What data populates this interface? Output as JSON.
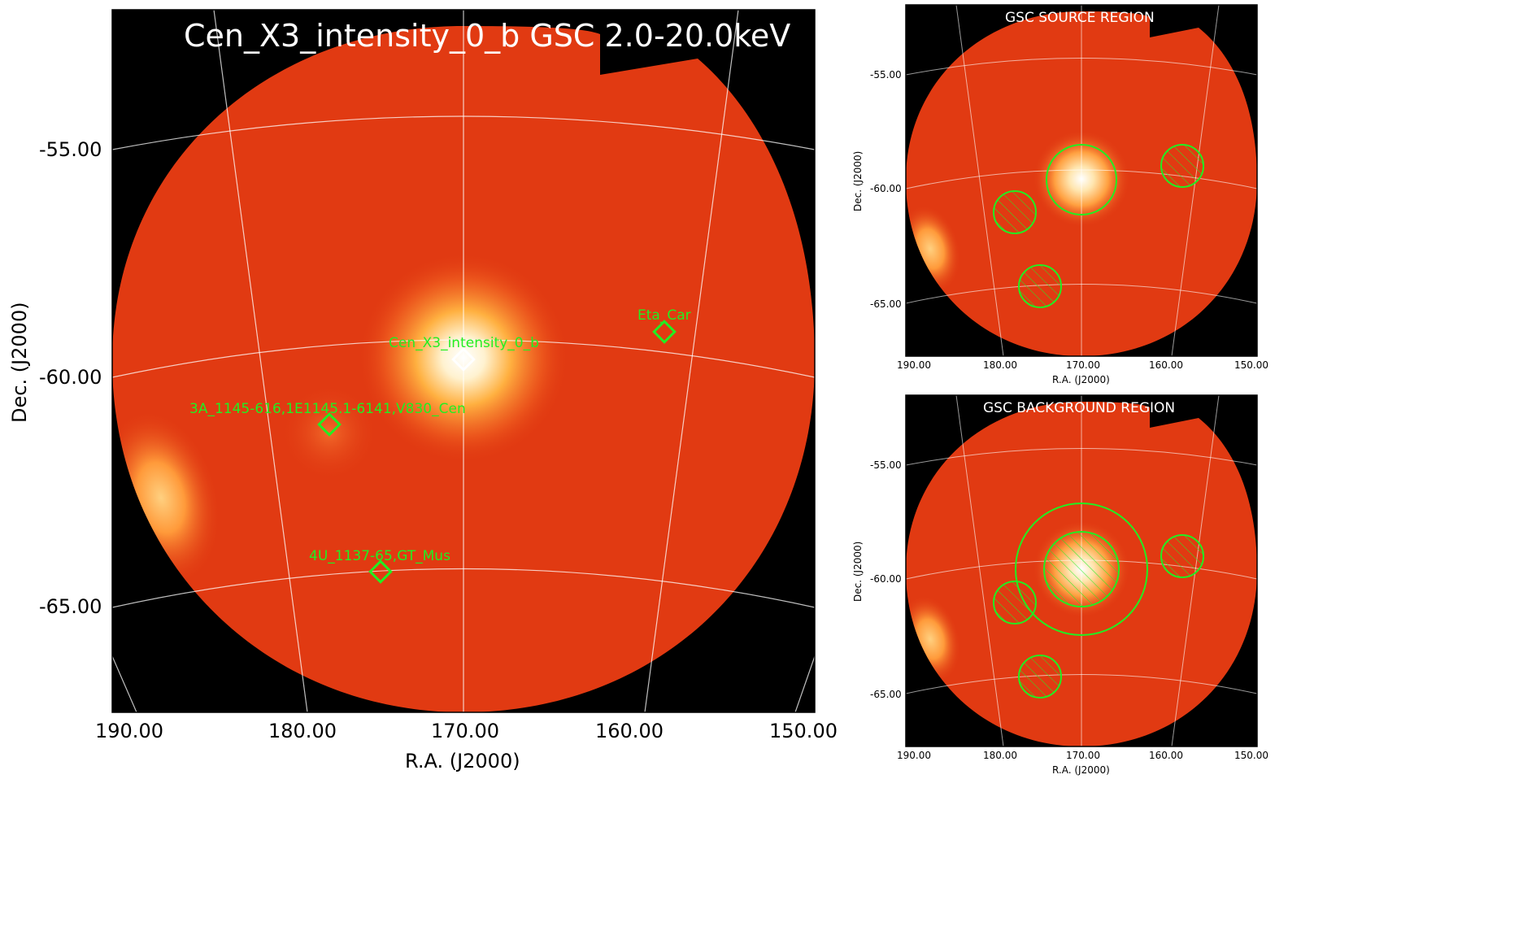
{
  "main": {
    "title": "Cen_X3_intensity_0_b GSC 2.0-20.0keV",
    "xlabel": "R.A. (J2000)",
    "ylabel": "Dec. (J2000)",
    "xticks": [
      "190.00",
      "180.00",
      "170.00",
      "160.00",
      "150.00"
    ],
    "yticks": [
      "-55.00",
      "-60.00",
      "-65.00"
    ],
    "sources": [
      {
        "label": "Cen_X3_intensity_0_b",
        "ra": 170.2,
        "dec": -59.6,
        "color": "#ffffff"
      },
      {
        "label": "Eta_Car",
        "ra": 158.0,
        "dec": -59.0,
        "color": "#22ee22"
      },
      {
        "label": "3A_1145-616,1E1145.1-6141,V830_Cen",
        "ra": 178.2,
        "dec": -61.1,
        "color": "#22ee22"
      },
      {
        "label": "4U_1137-65,GT_Mus",
        "ra": 175.2,
        "dec": -64.3,
        "color": "#22ee22"
      }
    ]
  },
  "source_panel": {
    "title": "GSC SOURCE REGION",
    "xlabel": "R.A. (J2000)",
    "ylabel": "Dec. (J2000)",
    "xticks": [
      "190.00",
      "180.00",
      "170.00",
      "160.00",
      "150.00"
    ],
    "yticks": [
      "-55.00",
      "-60.00",
      "-65.00"
    ]
  },
  "background_panel": {
    "title": "GSC BACKGROUND REGION",
    "xlabel": "R.A. (J2000)",
    "ylabel": "Dec. (J2000)",
    "xticks": [
      "190.00",
      "180.00",
      "170.00",
      "160.00",
      "150.00"
    ],
    "yticks": [
      "-55.00",
      "-60.00",
      "-65.00"
    ]
  },
  "colors": {
    "sky": "#e13a12",
    "region": "#22ee22",
    "grid": "#ffffff"
  }
}
